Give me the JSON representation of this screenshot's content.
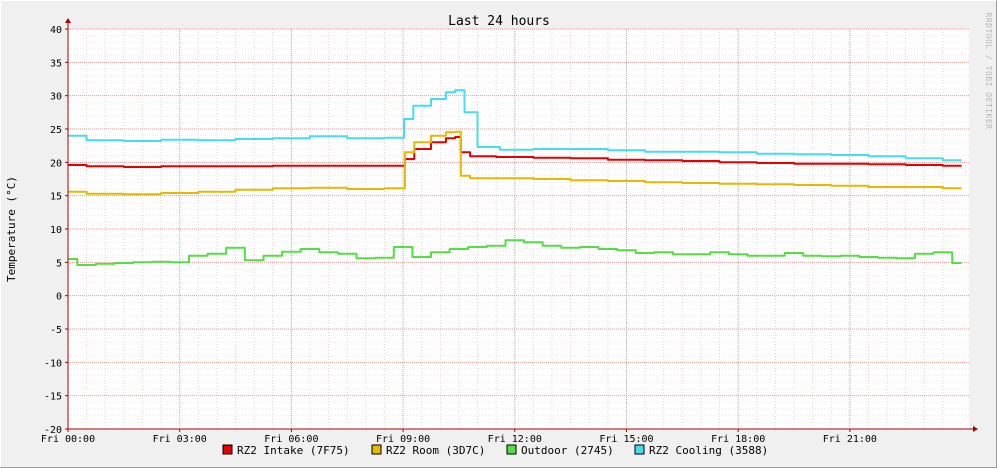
{
  "chart_data": {
    "type": "line",
    "title": "Last 24 hours",
    "ylabel": "Temperature (°C)",
    "xlabel": "",
    "watermark": "RRDTOOL / TOBI OETIKER",
    "x_ticks": [
      "Fri 00:00",
      "Fri 03:00",
      "Fri 06:00",
      "Fri 09:00",
      "Fri 12:00",
      "Fri 15:00",
      "Fri 18:00",
      "Fri 21:00"
    ],
    "x_tick_hours": [
      0,
      3,
      6,
      9,
      12,
      15,
      18,
      21
    ],
    "xlim": [
      0,
      24.2
    ],
    "y_ticks": [
      40,
      35,
      30,
      25,
      20,
      15,
      10,
      5,
      0,
      -5,
      -10,
      -15,
      -20
    ],
    "ylim": [
      -20,
      40
    ],
    "grid": true,
    "legend_position": "bottom",
    "series": [
      {
        "name": "RZ2 Intake (7F75)",
        "color": "#e60000",
        "x": [
          0,
          1,
          2,
          3,
          4,
          5,
          6,
          7,
          8,
          9,
          9.1,
          9.5,
          10,
          10.3,
          10.5,
          10.6,
          11,
          12,
          13,
          14,
          15,
          16,
          17,
          18,
          19,
          20,
          21,
          22,
          23,
          24
        ],
        "y": [
          19.6,
          19.4,
          19.3,
          19.4,
          19.4,
          19.4,
          19.5,
          19.5,
          19.5,
          19.5,
          20.5,
          22,
          23,
          23.6,
          23.8,
          21.5,
          20.9,
          20.8,
          20.7,
          20.6,
          20.4,
          20.3,
          20.2,
          20.0,
          19.9,
          19.8,
          19.8,
          19.7,
          19.6,
          19.5
        ]
      },
      {
        "name": "RZ2 Room (3D7C)",
        "color": "#e6b800",
        "x": [
          0,
          1,
          2,
          3,
          4,
          5,
          6,
          7,
          8,
          9,
          9.1,
          9.5,
          10,
          10.3,
          10.5,
          10.6,
          11,
          12,
          13,
          14,
          15,
          16,
          17,
          18,
          19,
          20,
          21,
          22,
          23,
          24
        ],
        "y": [
          15.6,
          15.3,
          15.2,
          15.4,
          15.6,
          15.9,
          16.1,
          16.2,
          16.0,
          16.1,
          21.5,
          23,
          24,
          24.5,
          24.6,
          18.0,
          17.6,
          17.6,
          17.5,
          17.3,
          17.2,
          17.0,
          16.9,
          16.8,
          16.7,
          16.6,
          16.5,
          16.3,
          16.3,
          16.1
        ]
      },
      {
        "name": "Outdoor (2745)",
        "color": "#55dd44",
        "x": [
          0,
          0.5,
          1,
          1.5,
          2,
          2.5,
          3,
          3.5,
          4,
          4.5,
          5,
          5.5,
          6,
          6.5,
          7,
          7.5,
          8,
          8.5,
          9,
          9.5,
          10,
          10.5,
          11,
          11.5,
          12,
          12.5,
          13,
          13.5,
          14,
          14.5,
          15,
          15.5,
          16,
          16.5,
          17,
          17.5,
          18,
          18.5,
          19,
          19.5,
          20,
          20.5,
          21,
          21.5,
          22,
          22.5,
          23,
          23.5,
          24
        ],
        "y": [
          5.5,
          4.6,
          4.8,
          4.9,
          5.0,
          5.1,
          5.0,
          6.0,
          6.3,
          7.2,
          5.3,
          6.0,
          6.6,
          7.0,
          6.5,
          6.3,
          5.6,
          5.7,
          7.3,
          5.8,
          6.5,
          7.0,
          7.3,
          7.5,
          8.3,
          8.0,
          7.5,
          7.2,
          7.3,
          7.0,
          6.8,
          6.4,
          6.5,
          6.2,
          6.2,
          6.5,
          6.2,
          6.0,
          6.0,
          6.4,
          6.0,
          5.9,
          6.0,
          5.8,
          5.7,
          5.6,
          6.3,
          6.5,
          4.9
        ]
      },
      {
        "name": "RZ2 Cooling (3588)",
        "color": "#44ddee",
        "x": [
          0,
          1,
          2,
          3,
          4,
          5,
          6,
          7,
          8,
          9,
          9.05,
          9.5,
          10,
          10.3,
          10.5,
          10.8,
          11.2,
          12,
          13,
          14,
          15,
          16,
          17,
          18,
          19,
          20,
          21,
          22,
          23,
          24
        ],
        "y": [
          24.0,
          23.3,
          23.2,
          23.4,
          23.3,
          23.5,
          23.6,
          23.9,
          23.6,
          23.7,
          26.5,
          28.5,
          29.5,
          30.5,
          30.8,
          27.5,
          22.3,
          21.9,
          22.0,
          22.0,
          21.8,
          21.6,
          21.6,
          21.5,
          21.3,
          21.2,
          21.1,
          20.9,
          20.6,
          20.3
        ]
      }
    ]
  }
}
